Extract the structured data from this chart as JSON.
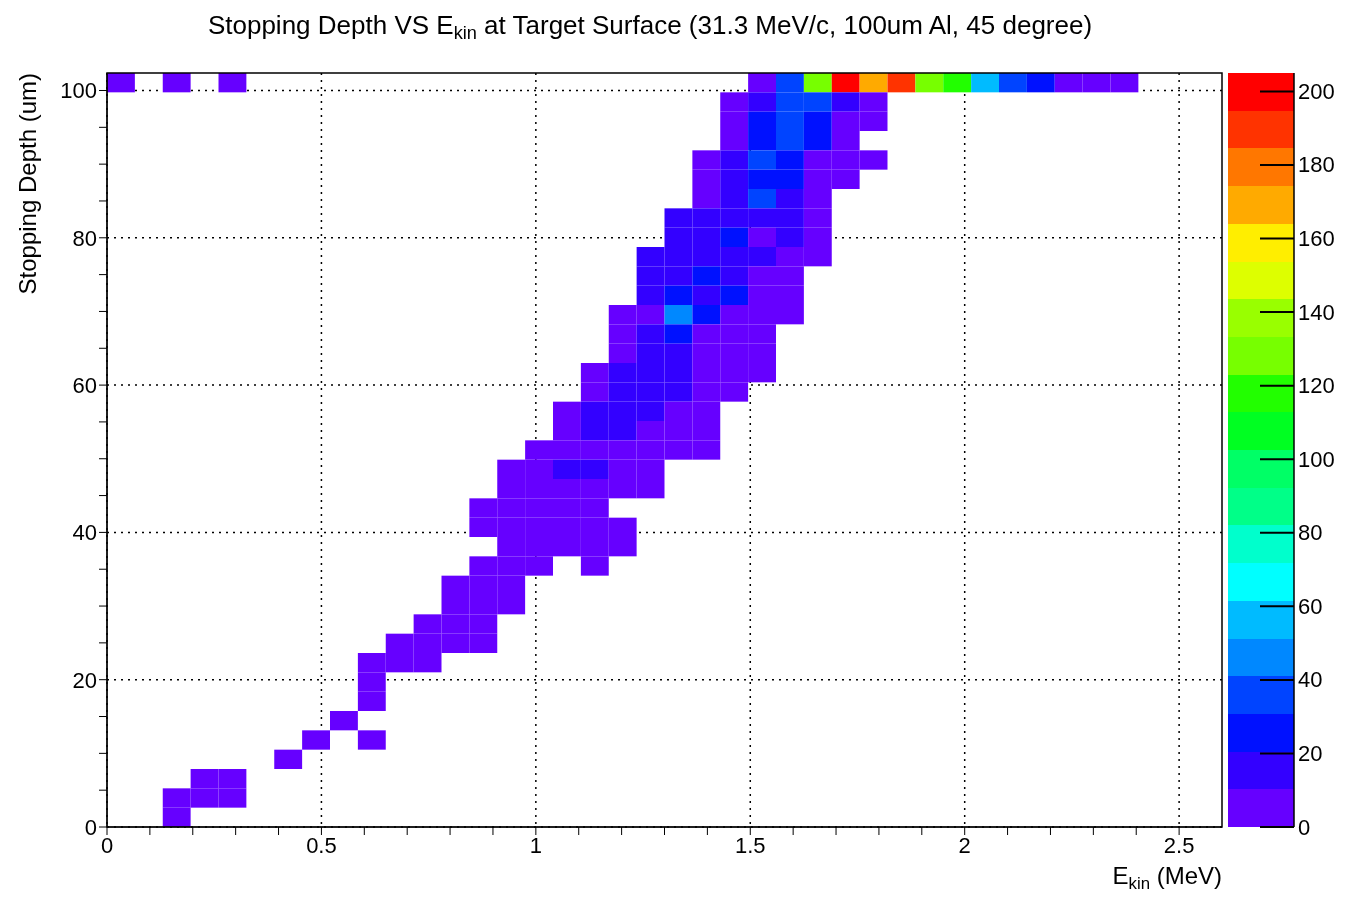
{
  "chart_data": {
    "type": "heatmap",
    "title": "Stopping Depth VS E$_{kin}$ at Target Surface (31.3 MeV/c, 100um Al, 45 degree)",
    "xlabel": "E$_{kin}$ (MeV)",
    "ylabel": "Stopping Depth (um)",
    "xlim": [
      0,
      2.6
    ],
    "xticks": [
      0,
      {
        "value": 0.1,
        "label": null
      },
      {
        "value": 0.2,
        "label": null
      },
      {
        "value": 0.3,
        "label": null
      },
      {
        "value": 0.4,
        "label": null
      },
      0.5,
      {
        "value": 0.6,
        "label": null
      },
      {
        "value": 0.7,
        "label": null
      },
      {
        "value": 0.8,
        "label": null
      },
      {
        "value": 0.9,
        "label": null
      },
      1,
      {
        "value": 1.1,
        "label": null
      },
      {
        "value": 1.2,
        "label": null
      },
      {
        "value": 1.3,
        "label": null
      },
      {
        "value": 1.4,
        "label": null
      },
      1.5,
      {
        "value": 1.6,
        "label": null
      },
      {
        "value": 1.7,
        "label": null
      },
      {
        "value": 1.8,
        "label": null
      },
      {
        "value": 1.9,
        "label": null
      },
      2,
      {
        "value": 2.1,
        "label": null
      },
      {
        "value": 2.2,
        "label": null
      },
      {
        "value": 2.3,
        "label": null
      },
      {
        "value": 2.4,
        "label": null
      },
      2.5
    ],
    "ylim": [
      0,
      102.375
    ],
    "yticks": [
      0,
      {
        "value": 5,
        "label": null
      },
      {
        "value": 10,
        "label": null
      },
      {
        "value": 15,
        "label": null
      },
      20,
      {
        "value": 25,
        "label": null
      },
      {
        "value": 30,
        "label": null
      },
      {
        "value": 35,
        "label": null
      },
      40,
      {
        "value": 45,
        "label": null
      },
      {
        "value": 50,
        "label": null
      },
      {
        "value": 55,
        "label": null
      },
      60,
      {
        "value": 65,
        "label": null
      },
      {
        "value": 70,
        "label": null
      },
      {
        "value": 75,
        "label": null
      },
      80,
      {
        "value": 85,
        "label": null
      },
      {
        "value": 90,
        "label": null
      },
      {
        "value": 95,
        "label": null
      },
      100
    ],
    "grid": true,
    "clim": [
      0,
      205
    ],
    "cticks": [
      0,
      20,
      40,
      60,
      80,
      100,
      120,
      140,
      160,
      180,
      200
    ],
    "cells": [
      [
        5,
        null,
        5,
        null,
        5,
        null,
        null,
        null,
        null,
        null,
        null,
        null,
        null,
        null,
        null,
        null,
        null,
        null,
        null,
        null,
        null,
        null,
        null,
        5,
        36,
        128,
        200,
        169,
        190,
        128,
        118,
        56,
        36,
        26,
        5,
        5,
        5,
        null,
        null,
        null
      ],
      [
        null,
        null,
        null,
        null,
        null,
        null,
        null,
        null,
        null,
        null,
        null,
        null,
        null,
        null,
        null,
        null,
        null,
        null,
        null,
        null,
        null,
        null,
        5,
        15,
        36,
        36,
        15,
        5,
        null,
        null,
        null,
        null,
        null,
        null,
        null,
        null,
        null,
        null,
        null,
        null
      ],
      [
        null,
        null,
        null,
        null,
        null,
        null,
        null,
        null,
        null,
        null,
        null,
        null,
        null,
        null,
        null,
        null,
        null,
        null,
        null,
        null,
        null,
        null,
        5,
        26,
        36,
        26,
        5,
        5,
        null,
        null,
        null,
        null,
        null,
        null,
        null,
        null,
        null,
        null,
        null,
        null
      ],
      [
        null,
        null,
        null,
        null,
        null,
        null,
        null,
        null,
        null,
        null,
        null,
        null,
        null,
        null,
        null,
        null,
        null,
        null,
        null,
        null,
        null,
        null,
        5,
        26,
        36,
        26,
        5,
        null,
        null,
        null,
        null,
        null,
        null,
        null,
        null,
        null,
        null,
        null,
        null,
        null
      ],
      [
        null,
        null,
        null,
        null,
        null,
        null,
        null,
        null,
        null,
        null,
        null,
        null,
        null,
        null,
        null,
        null,
        null,
        null,
        null,
        null,
        null,
        5,
        15,
        36,
        26,
        5,
        5,
        5,
        null,
        null,
        null,
        null,
        null,
        null,
        null,
        null,
        null,
        null,
        null,
        null
      ],
      [
        null,
        null,
        null,
        null,
        null,
        null,
        null,
        null,
        null,
        null,
        null,
        null,
        null,
        null,
        null,
        null,
        null,
        null,
        null,
        null,
        null,
        5,
        15,
        26,
        26,
        5,
        5,
        null,
        null,
        null,
        null,
        null,
        null,
        null,
        null,
        null,
        null,
        null,
        null,
        null
      ],
      [
        null,
        null,
        null,
        null,
        null,
        null,
        null,
        null,
        null,
        null,
        null,
        null,
        null,
        null,
        null,
        null,
        null,
        null,
        null,
        null,
        null,
        5,
        15,
        36,
        15,
        5,
        null,
        null,
        null,
        null,
        null,
        null,
        null,
        null,
        null,
        null,
        null,
        null,
        null,
        null
      ],
      [
        null,
        null,
        null,
        null,
        null,
        null,
        null,
        null,
        null,
        null,
        null,
        null,
        null,
        null,
        null,
        null,
        null,
        null,
        null,
        null,
        15,
        15,
        15,
        15,
        15,
        5,
        null,
        null,
        null,
        null,
        null,
        null,
        null,
        null,
        null,
        null,
        null,
        null,
        null,
        null
      ],
      [
        null,
        null,
        null,
        null,
        null,
        null,
        null,
        null,
        null,
        null,
        null,
        null,
        null,
        null,
        null,
        null,
        null,
        null,
        null,
        null,
        15,
        15,
        26,
        5,
        15,
        5,
        null,
        null,
        null,
        null,
        null,
        null,
        null,
        null,
        null,
        null,
        null,
        null,
        null,
        null
      ],
      [
        null,
        null,
        null,
        null,
        null,
        null,
        null,
        null,
        null,
        null,
        null,
        null,
        null,
        null,
        null,
        null,
        null,
        null,
        null,
        15,
        15,
        15,
        15,
        15,
        5,
        5,
        null,
        null,
        null,
        null,
        null,
        null,
        null,
        null,
        null,
        null,
        null,
        null,
        null,
        null
      ],
      [
        null,
        null,
        null,
        null,
        null,
        null,
        null,
        null,
        null,
        null,
        null,
        null,
        null,
        null,
        null,
        null,
        null,
        null,
        null,
        15,
        15,
        26,
        15,
        5,
        5,
        null,
        null,
        null,
        null,
        null,
        null,
        null,
        null,
        null,
        null,
        null,
        null,
        null,
        null,
        null
      ],
      [
        null,
        null,
        null,
        null,
        null,
        null,
        null,
        null,
        null,
        null,
        null,
        null,
        null,
        null,
        null,
        null,
        null,
        null,
        null,
        15,
        26,
        15,
        26,
        5,
        5,
        null,
        null,
        null,
        null,
        null,
        null,
        null,
        null,
        null,
        null,
        null,
        null,
        null,
        null,
        null
      ],
      [
        null,
        null,
        null,
        null,
        null,
        null,
        null,
        null,
        null,
        null,
        null,
        null,
        null,
        null,
        null,
        null,
        null,
        null,
        5,
        5,
        46,
        26,
        5,
        5,
        5,
        null,
        null,
        null,
        null,
        null,
        null,
        null,
        null,
        null,
        null,
        null,
        null,
        null,
        null,
        null
      ],
      [
        null,
        null,
        null,
        null,
        null,
        null,
        null,
        null,
        null,
        null,
        null,
        null,
        null,
        null,
        null,
        null,
        null,
        null,
        5,
        15,
        26,
        5,
        5,
        5,
        null,
        null,
        null,
        null,
        null,
        null,
        null,
        null,
        null,
        null,
        null,
        null,
        null,
        null,
        null,
        null
      ],
      [
        null,
        null,
        null,
        null,
        null,
        null,
        null,
        null,
        null,
        null,
        null,
        null,
        null,
        null,
        null,
        null,
        null,
        null,
        5,
        15,
        15,
        5,
        5,
        5,
        null,
        null,
        null,
        null,
        null,
        null,
        null,
        null,
        null,
        null,
        null,
        null,
        null,
        null,
        null,
        null
      ],
      [
        null,
        null,
        null,
        null,
        null,
        null,
        null,
        null,
        null,
        null,
        null,
        null,
        null,
        null,
        null,
        null,
        null,
        5,
        15,
        15,
        15,
        5,
        5,
        5,
        null,
        null,
        null,
        null,
        null,
        null,
        null,
        null,
        null,
        null,
        null,
        null,
        null,
        null,
        null,
        null
      ],
      [
        null,
        null,
        null,
        null,
        null,
        null,
        null,
        null,
        null,
        null,
        null,
        null,
        null,
        null,
        null,
        null,
        null,
        5,
        15,
        15,
        15,
        5,
        5,
        null,
        null,
        null,
        null,
        null,
        null,
        null,
        null,
        null,
        null,
        null,
        null,
        null,
        null,
        null,
        null,
        null
      ],
      [
        null,
        null,
        null,
        null,
        null,
        null,
        null,
        null,
        null,
        null,
        null,
        null,
        null,
        null,
        null,
        null,
        5,
        15,
        15,
        15,
        5,
        5,
        null,
        null,
        null,
        null,
        null,
        null,
        null,
        null,
        null,
        null,
        null,
        null,
        null,
        null,
        null,
        null,
        null,
        null
      ],
      [
        null,
        null,
        null,
        null,
        null,
        null,
        null,
        null,
        null,
        null,
        null,
        null,
        null,
        null,
        null,
        null,
        5,
        15,
        15,
        5,
        5,
        5,
        null,
        null,
        null,
        null,
        null,
        null,
        null,
        null,
        null,
        null,
        null,
        null,
        null,
        null,
        null,
        null,
        null,
        null
      ],
      [
        null,
        null,
        null,
        null,
        null,
        null,
        null,
        null,
        null,
        null,
        null,
        null,
        null,
        null,
        null,
        5,
        5,
        5,
        5,
        5,
        5,
        5,
        null,
        null,
        null,
        null,
        null,
        null,
        null,
        null,
        null,
        null,
        null,
        null,
        null,
        null,
        null,
        null,
        null,
        null
      ],
      [
        null,
        null,
        null,
        null,
        null,
        null,
        null,
        null,
        null,
        null,
        null,
        null,
        null,
        null,
        5,
        5,
        15,
        15,
        5,
        5,
        null,
        null,
        null,
        null,
        null,
        null,
        null,
        null,
        null,
        null,
        null,
        null,
        null,
        null,
        null,
        null,
        null,
        null,
        null,
        null
      ],
      [
        null,
        null,
        null,
        null,
        null,
        null,
        null,
        null,
        null,
        null,
        null,
        null,
        null,
        null,
        5,
        5,
        5,
        5,
        5,
        5,
        null,
        null,
        null,
        null,
        null,
        null,
        null,
        null,
        null,
        null,
        null,
        null,
        null,
        null,
        null,
        null,
        null,
        null,
        null,
        null
      ],
      [
        null,
        null,
        null,
        null,
        null,
        null,
        null,
        null,
        null,
        null,
        null,
        null,
        null,
        5,
        5,
        5,
        5,
        5,
        null,
        null,
        null,
        null,
        null,
        null,
        null,
        null,
        null,
        null,
        null,
        null,
        null,
        null,
        null,
        null,
        null,
        null,
        null,
        null,
        null,
        null
      ],
      [
        null,
        null,
        null,
        null,
        null,
        null,
        null,
        null,
        null,
        null,
        null,
        null,
        null,
        5,
        5,
        5,
        5,
        5,
        5,
        null,
        null,
        null,
        null,
        null,
        null,
        null,
        null,
        null,
        null,
        null,
        null,
        null,
        null,
        null,
        null,
        null,
        null,
        null,
        null,
        null
      ],
      [
        null,
        null,
        null,
        null,
        null,
        null,
        null,
        null,
        null,
        null,
        null,
        null,
        null,
        null,
        5,
        5,
        5,
        5,
        5,
        null,
        null,
        null,
        null,
        null,
        null,
        null,
        null,
        null,
        null,
        null,
        null,
        null,
        null,
        null,
        null,
        null,
        null,
        null,
        null,
        null
      ],
      [
        null,
        null,
        null,
        null,
        null,
        null,
        null,
        null,
        null,
        null,
        null,
        null,
        null,
        5,
        5,
        5,
        null,
        5,
        null,
        null,
        null,
        null,
        null,
        null,
        null,
        null,
        null,
        null,
        null,
        null,
        null,
        null,
        null,
        null,
        null,
        null,
        null,
        null,
        null,
        null
      ],
      [
        null,
        null,
        null,
        null,
        null,
        null,
        null,
        null,
        null,
        null,
        null,
        null,
        5,
        5,
        5,
        null,
        null,
        null,
        null,
        null,
        null,
        null,
        null,
        null,
        null,
        null,
        null,
        null,
        null,
        null,
        null,
        null,
        null,
        null,
        null,
        null,
        null,
        null,
        null,
        null
      ],
      [
        null,
        null,
        null,
        null,
        null,
        null,
        null,
        null,
        null,
        null,
        null,
        null,
        5,
        5,
        5,
        null,
        null,
        null,
        null,
        null,
        null,
        null,
        null,
        null,
        null,
        null,
        null,
        null,
        null,
        null,
        null,
        null,
        null,
        null,
        null,
        null,
        null,
        null,
        null,
        null
      ],
      [
        null,
        null,
        null,
        null,
        null,
        null,
        null,
        null,
        null,
        null,
        null,
        5,
        5,
        5,
        null,
        null,
        null,
        null,
        null,
        null,
        null,
        null,
        null,
        null,
        null,
        null,
        null,
        null,
        null,
        null,
        null,
        null,
        null,
        null,
        null,
        null,
        null,
        null,
        null,
        null
      ],
      [
        null,
        null,
        null,
        null,
        null,
        null,
        null,
        null,
        null,
        null,
        5,
        5,
        5,
        5,
        null,
        null,
        null,
        null,
        null,
        null,
        null,
        null,
        null,
        null,
        null,
        null,
        null,
        null,
        null,
        null,
        null,
        null,
        null,
        null,
        null,
        null,
        null,
        null,
        null,
        null
      ],
      [
        null,
        null,
        null,
        null,
        null,
        null,
        null,
        null,
        null,
        5,
        5,
        5,
        null,
        null,
        null,
        null,
        null,
        null,
        null,
        null,
        null,
        null,
        null,
        null,
        null,
        null,
        null,
        null,
        null,
        null,
        null,
        null,
        null,
        null,
        null,
        null,
        null,
        null,
        null,
        null
      ],
      [
        null,
        null,
        null,
        null,
        null,
        null,
        null,
        null,
        null,
        5,
        null,
        null,
        null,
        null,
        null,
        null,
        null,
        null,
        null,
        null,
        null,
        null,
        null,
        null,
        null,
        null,
        null,
        null,
        null,
        null,
        null,
        null,
        null,
        null,
        null,
        null,
        null,
        null,
        null,
        null
      ],
      [
        null,
        null,
        null,
        null,
        null,
        null,
        null,
        null,
        null,
        5,
        null,
        null,
        null,
        null,
        null,
        null,
        null,
        null,
        null,
        null,
        null,
        null,
        null,
        null,
        null,
        null,
        null,
        null,
        null,
        null,
        null,
        null,
        null,
        null,
        null,
        null,
        null,
        null,
        null,
        null
      ],
      [
        null,
        null,
        null,
        null,
        null,
        null,
        null,
        null,
        5,
        null,
        null,
        null,
        null,
        null,
        null,
        null,
        null,
        null,
        null,
        null,
        null,
        null,
        null,
        null,
        null,
        null,
        null,
        null,
        null,
        null,
        null,
        null,
        null,
        null,
        null,
        null,
        null,
        null,
        null,
        null
      ],
      [
        null,
        null,
        null,
        null,
        null,
        null,
        null,
        5,
        null,
        5,
        null,
        null,
        null,
        null,
        null,
        null,
        null,
        null,
        null,
        null,
        null,
        null,
        null,
        null,
        null,
        null,
        null,
        null,
        null,
        null,
        null,
        null,
        null,
        null,
        null,
        null,
        null,
        null,
        null,
        null
      ],
      [
        null,
        null,
        null,
        null,
        null,
        null,
        5,
        null,
        null,
        null,
        null,
        null,
        null,
        null,
        null,
        null,
        null,
        null,
        null,
        null,
        null,
        null,
        null,
        null,
        null,
        null,
        null,
        null,
        null,
        null,
        null,
        null,
        null,
        null,
        null,
        null,
        null,
        null,
        null,
        null
      ],
      [
        null,
        null,
        null,
        5,
        5,
        null,
        null,
        null,
        null,
        null,
        null,
        null,
        null,
        null,
        null,
        null,
        null,
        null,
        null,
        null,
        null,
        null,
        null,
        null,
        null,
        null,
        null,
        null,
        null,
        null,
        null,
        null,
        null,
        null,
        null,
        null,
        null,
        null,
        null,
        null
      ],
      [
        null,
        null,
        5,
        5,
        5,
        null,
        null,
        null,
        null,
        null,
        null,
        null,
        null,
        null,
        null,
        null,
        null,
        null,
        null,
        null,
        null,
        null,
        null,
        null,
        null,
        null,
        null,
        null,
        null,
        null,
        null,
        null,
        null,
        null,
        null,
        null,
        null,
        null,
        null,
        null
      ],
      [
        null,
        null,
        5,
        null,
        null,
        null,
        null,
        null,
        null,
        null,
        null,
        null,
        null,
        null,
        null,
        null,
        null,
        null,
        null,
        null,
        null,
        null,
        null,
        null,
        null,
        null,
        null,
        null,
        null,
        null,
        null,
        null,
        null,
        null,
        null,
        null,
        null,
        null,
        null,
        null
      ]
    ]
  }
}
